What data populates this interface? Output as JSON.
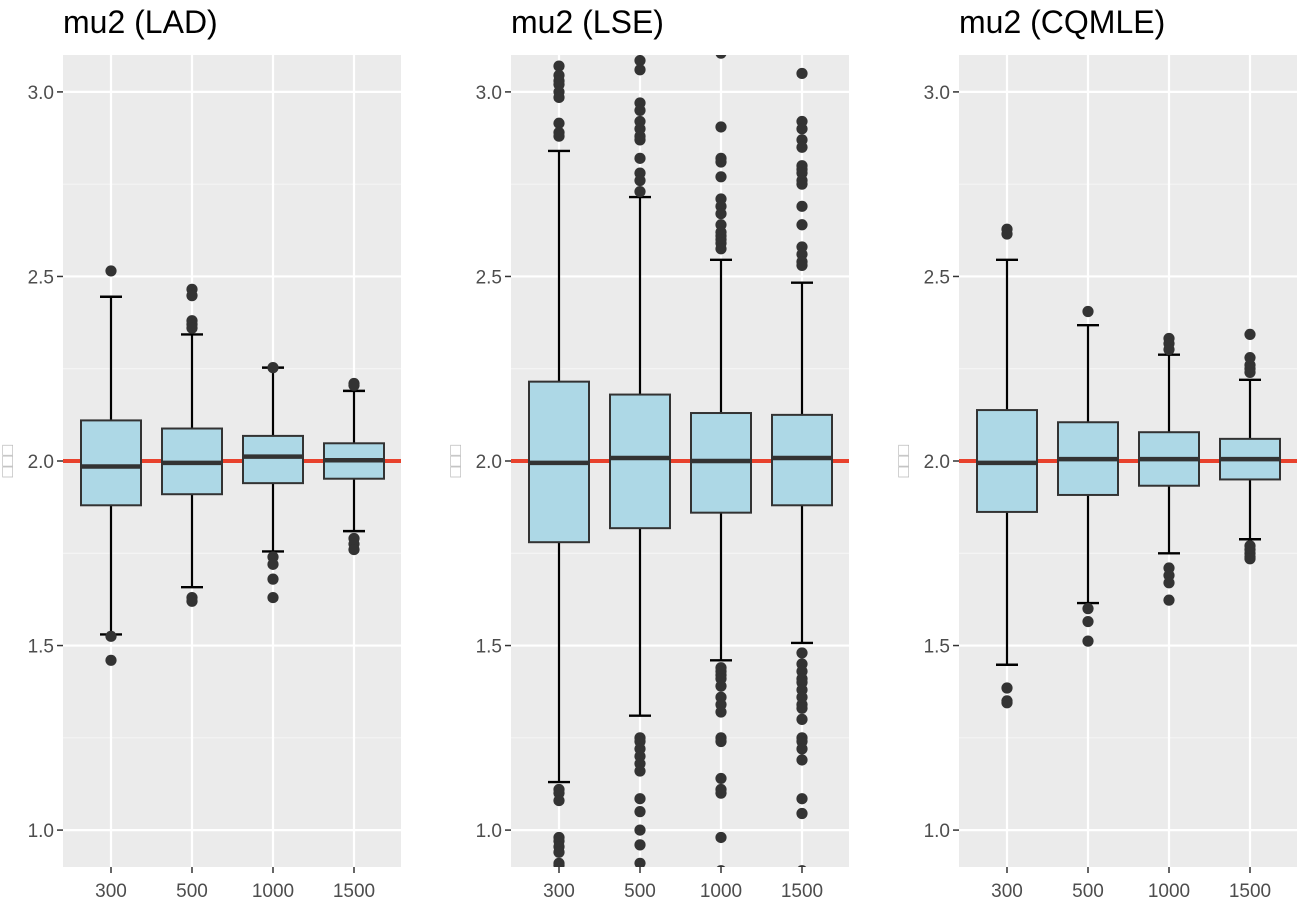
{
  "chart_data": [
    {
      "type": "box",
      "title": "mu2 (LAD)",
      "ylabel": "□□□",
      "xlabel": "",
      "categories": [
        "300",
        "500",
        "1000",
        "1500"
      ],
      "ylim": [
        0.9,
        3.1
      ],
      "yticks": [
        1.0,
        1.5,
        2.0,
        2.5,
        3.0
      ],
      "ytick_labels": [
        "1.0",
        "1.5",
        "2.0",
        "2.5",
        "3.0"
      ],
      "reference_line": 2.0,
      "boxes": [
        {
          "q1": 1.88,
          "median": 1.985,
          "q3": 2.11,
          "whisker_low": 1.53,
          "whisker_high": 2.445,
          "outliers": [
            2.515,
            1.525,
            1.46
          ]
        },
        {
          "q1": 1.91,
          "median": 1.995,
          "q3": 2.088,
          "whisker_low": 1.658,
          "whisker_high": 2.343,
          "outliers": [
            2.465,
            2.448,
            2.38,
            2.37,
            2.36,
            1.63,
            1.62
          ]
        },
        {
          "q1": 1.94,
          "median": 2.012,
          "q3": 2.068,
          "whisker_low": 1.755,
          "whisker_high": 2.253,
          "outliers": [
            2.253,
            1.74,
            1.72,
            1.68,
            1.63
          ]
        },
        {
          "q1": 1.952,
          "median": 2.002,
          "q3": 2.048,
          "whisker_low": 1.81,
          "whisker_high": 2.19,
          "outliers": [
            2.21,
            2.205,
            1.79,
            1.775,
            1.76
          ]
        }
      ]
    },
    {
      "type": "box",
      "title": "mu2 (LSE)",
      "ylabel": "□□□",
      "xlabel": "",
      "categories": [
        "300",
        "500",
        "1000",
        "1500"
      ],
      "ylim": [
        0.9,
        3.1
      ],
      "yticks": [
        1.0,
        1.5,
        2.0,
        2.5,
        3.0
      ],
      "ytick_labels": [
        "1.0",
        "1.5",
        "2.0",
        "2.5",
        "3.0"
      ],
      "reference_line": 2.0,
      "boxes": [
        {
          "q1": 1.78,
          "median": 1.995,
          "q3": 2.215,
          "whisker_low": 1.13,
          "whisker_high": 2.84,
          "outliers": [
            3.07,
            3.045,
            3.03,
            3.02,
            3.0,
            2.985,
            2.915,
            2.89,
            2.88,
            1.11,
            1.1,
            1.08,
            0.98,
            0.97,
            0.955,
            0.94,
            0.91,
            0.905
          ]
        },
        {
          "q1": 1.818,
          "median": 2.008,
          "q3": 2.18,
          "whisker_low": 1.31,
          "whisker_high": 2.715,
          "outliers": [
            3.085,
            3.06,
            2.97,
            2.95,
            2.92,
            2.9,
            2.88,
            2.87,
            2.82,
            2.78,
            2.76,
            2.73,
            1.25,
            1.24,
            1.22,
            1.2,
            1.18,
            1.16,
            1.085,
            1.05,
            1.0,
            0.96,
            0.91
          ]
        },
        {
          "q1": 1.86,
          "median": 2.0,
          "q3": 2.13,
          "whisker_low": 1.46,
          "whisker_high": 2.545,
          "outliers": [
            3.105,
            2.905,
            2.82,
            2.81,
            2.77,
            2.71,
            2.69,
            2.67,
            2.64,
            2.62,
            2.61,
            2.6,
            2.59,
            2.575,
            1.44,
            1.43,
            1.42,
            1.41,
            1.39,
            1.36,
            1.34,
            1.32,
            1.25,
            1.24,
            1.14,
            1.11,
            1.1,
            0.98,
            0.89
          ]
        },
        {
          "q1": 1.88,
          "median": 2.008,
          "q3": 2.125,
          "whisker_low": 1.507,
          "whisker_high": 2.483,
          "outliers": [
            3.05,
            2.92,
            2.9,
            2.87,
            2.85,
            2.8,
            2.79,
            2.78,
            2.76,
            2.75,
            2.69,
            2.64,
            2.58,
            2.56,
            2.54,
            2.53,
            1.48,
            1.45,
            1.43,
            1.41,
            1.4,
            1.38,
            1.36,
            1.34,
            1.33,
            1.3,
            1.25,
            1.24,
            1.22,
            1.19,
            1.085,
            1.045,
            0.89
          ]
        }
      ]
    },
    {
      "type": "box",
      "title": "mu2 (CQMLE)",
      "ylabel": "□□□",
      "xlabel": "",
      "categories": [
        "300",
        "500",
        "1000",
        "1500"
      ],
      "ylim": [
        0.9,
        3.1
      ],
      "yticks": [
        1.0,
        1.5,
        2.0,
        2.5,
        3.0
      ],
      "ytick_labels": [
        "1.0",
        "1.5",
        "2.0",
        "2.5",
        "3.0"
      ],
      "reference_line": 2.0,
      "boxes": [
        {
          "q1": 1.862,
          "median": 1.995,
          "q3": 2.138,
          "whisker_low": 1.448,
          "whisker_high": 2.545,
          "outliers": [
            2.628,
            2.615,
            1.385,
            1.35,
            1.345
          ]
        },
        {
          "q1": 1.908,
          "median": 2.005,
          "q3": 2.105,
          "whisker_low": 1.615,
          "whisker_high": 2.368,
          "outliers": [
            2.405,
            1.6,
            1.565,
            1.512
          ]
        },
        {
          "q1": 1.933,
          "median": 2.005,
          "q3": 2.078,
          "whisker_low": 1.75,
          "whisker_high": 2.288,
          "outliers": [
            2.332,
            2.318,
            2.302,
            1.71,
            1.69,
            1.67,
            1.623
          ]
        },
        {
          "q1": 1.95,
          "median": 2.005,
          "q3": 2.06,
          "whisker_low": 1.788,
          "whisker_high": 2.22,
          "outliers": [
            2.343,
            2.28,
            2.26,
            2.25,
            2.24,
            1.77,
            1.76,
            1.75,
            1.74,
            1.735
          ]
        }
      ]
    }
  ],
  "colors": {
    "panel_background": "#ebebeb",
    "grid_major": "#ffffff",
    "grid_minor": "#f5f5f5",
    "box_fill": "#add8e6",
    "box_stroke": "#333333",
    "whisker": "#000000",
    "median": "#333333",
    "outlier": "#333333",
    "reference_line": "#e8412c",
    "tick_text": "#4d4d4d"
  }
}
